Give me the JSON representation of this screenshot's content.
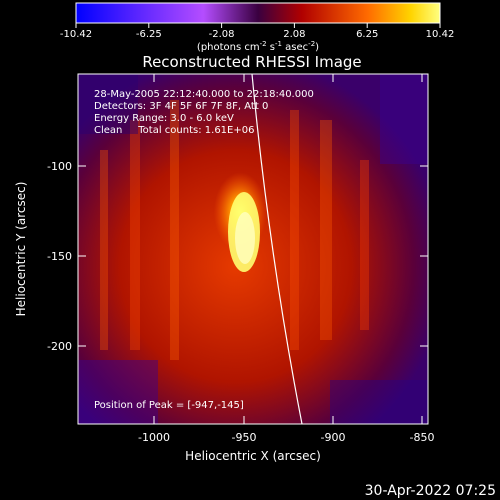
{
  "colorbar": {
    "tick_labels": [
      "-10.42",
      "-6.25",
      "-2.08",
      "2.08",
      "6.25",
      "10.42"
    ],
    "unit_main": "(photons cm",
    "unit_exp1": "-2",
    "unit_mid": " s",
    "unit_exp2": "-1",
    "unit_tail": " asec",
    "unit_exp3": "-2",
    "unit_close": ")"
  },
  "plot": {
    "title": "Reconstructed RHESSI Image",
    "info_lines": [
      "28-May-2005 22:12:40.000 to 22:18:40.000",
      "Detectors: 3F 4F 5F 6F 7F 8F, Att 0",
      "Energy Range: 3.0 - 6.0 keV",
      "Clean     Total counts: 1.61E+06"
    ],
    "peak_label": "Position of Peak = [-947,-145]",
    "xlabel": "Heliocentric X (arcsec)",
    "ylabel": "Heliocentric Y (arcsec)",
    "x_ticks": [
      "-1000",
      "-950",
      "-900",
      "-850"
    ],
    "y_ticks": [
      "-100",
      "-150",
      "-200"
    ]
  },
  "footer": {
    "timestamp": "30-Apr-2022 07:25"
  },
  "colors": {
    "accent": "#ffff00",
    "background": "#000000"
  }
}
